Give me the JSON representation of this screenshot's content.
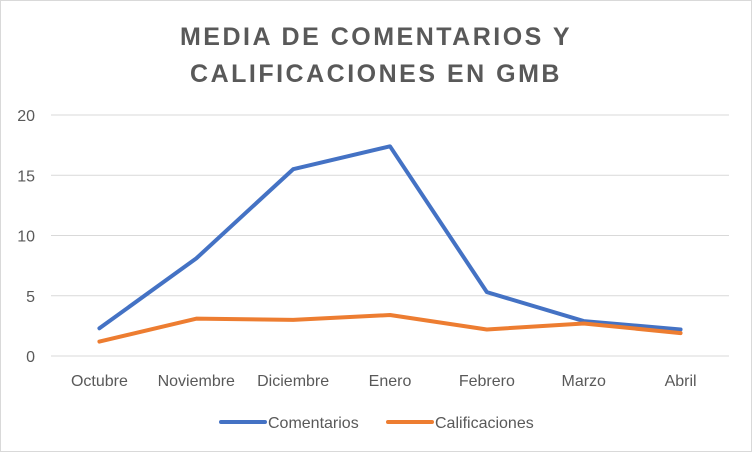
{
  "chart_data": {
    "type": "line",
    "title_lines": [
      "MEDIA DE COMENTARIOS Y",
      "CALIFICACIONES EN GMB"
    ],
    "categories": [
      "Octubre",
      "Noviembre",
      "Diciembre",
      "Enero",
      "Febrero",
      "Marzo",
      "Abril"
    ],
    "series": [
      {
        "name": "Comentarios",
        "color": "#4472c4",
        "values": [
          2.3,
          8.1,
          15.5,
          17.4,
          5.3,
          2.9,
          2.2
        ]
      },
      {
        "name": "Calificaciones",
        "color": "#ed7d31",
        "values": [
          1.2,
          3.1,
          3.0,
          3.4,
          2.2,
          2.7,
          1.9
        ]
      }
    ],
    "yticks": [
      0,
      5,
      10,
      15,
      20
    ],
    "ylim": [
      0,
      20
    ],
    "xlabel": "",
    "ylabel": "",
    "grid": true,
    "legend_position": "bottom",
    "gridline_color": "#d9d9d9"
  }
}
